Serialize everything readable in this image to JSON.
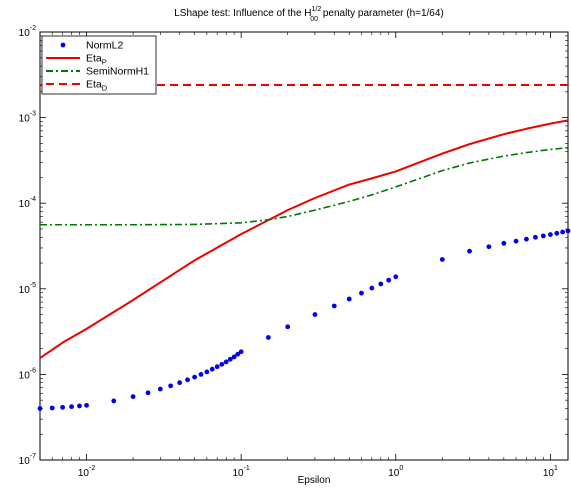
{
  "chart_data": {
    "type": "line",
    "title": {
      "prefix": "LShape test: Influence of the H",
      "sup": "1/2",
      "sub": "00",
      "suffix": " penalty parameter (h=1/64)"
    },
    "xlabel": "Epsilon",
    "ylabel": "",
    "xscale": "log",
    "yscale": "log",
    "xlim": [
      0.005,
      13
    ],
    "ylim": [
      1e-07,
      0.01
    ],
    "grid": false,
    "legend_position": "top-left",
    "x_ticks": [
      {
        "value": 0.01,
        "base": "10",
        "exp": "-2"
      },
      {
        "value": 0.1,
        "base": "10",
        "exp": "-1"
      },
      {
        "value": 1,
        "base": "10",
        "exp": "0"
      },
      {
        "value": 10,
        "base": "10",
        "exp": "1"
      }
    ],
    "y_ticks": [
      {
        "value": 1e-07,
        "base": "10",
        "exp": "-7"
      },
      {
        "value": 1e-06,
        "base": "10",
        "exp": "-6"
      },
      {
        "value": 1e-05,
        "base": "10",
        "exp": "-5"
      },
      {
        "value": 0.0001,
        "base": "10",
        "exp": "-4"
      },
      {
        "value": 0.001,
        "base": "10",
        "exp": "-3"
      },
      {
        "value": 0.01,
        "base": "10",
        "exp": "-2"
      }
    ],
    "series": [
      {
        "name": "NormL2",
        "label_main": "NormL2",
        "label_sub": "",
        "style": "dots",
        "color": "#0000ee",
        "x": [
          0.005,
          0.006,
          0.007,
          0.008,
          0.009,
          0.01,
          0.015,
          0.02,
          0.025,
          0.03,
          0.035,
          0.04,
          0.045,
          0.05,
          0.055,
          0.06,
          0.065,
          0.07,
          0.075,
          0.08,
          0.085,
          0.09,
          0.095,
          0.1,
          0.15,
          0.2,
          0.3,
          0.4,
          0.5,
          0.6,
          0.7,
          0.8,
          0.9,
          1.0,
          2,
          3,
          4,
          5,
          6,
          7,
          8,
          9,
          10,
          11,
          12,
          13
        ],
        "y": [
          4e-07,
          4.05e-07,
          4.12e-07,
          4.2e-07,
          4.28e-07,
          4.35e-07,
          4.9e-07,
          5.5e-07,
          6.1e-07,
          6.75e-07,
          7.35e-07,
          8e-07,
          8.65e-07,
          9.3e-07,
          1e-06,
          1.07e-06,
          1.15e-06,
          1.23e-06,
          1.31e-06,
          1.4e-06,
          1.5e-06,
          1.6e-06,
          1.72e-06,
          1.84e-06,
          2.7e-06,
          3.6e-06,
          5e-06,
          6.3e-06,
          7.6e-06,
          8.9e-06,
          1.02e-05,
          1.14e-05,
          1.26e-05,
          1.38e-05,
          2.2e-05,
          2.75e-05,
          3.1e-05,
          3.4e-05,
          3.6e-05,
          3.8e-05,
          4e-05,
          4.15e-05,
          4.3e-05,
          4.45e-05,
          4.6e-05,
          4.75e-05
        ]
      },
      {
        "name": "EtaP",
        "label_main": "Eta",
        "label_sub": "P",
        "style": "solid",
        "color": "#ee0000",
        "x": [
          0.005,
          0.007,
          0.01,
          0.02,
          0.05,
          0.1,
          0.2,
          0.3,
          0.5,
          0.7,
          1,
          2,
          3,
          5,
          7,
          10,
          13
        ],
        "y": [
          1.55e-06,
          2.35e-06,
          3.4e-06,
          7.4e-06,
          2.15e-05,
          4.35e-05,
          8.3e-05,
          0.000115,
          0.000165,
          0.000195,
          0.000235,
          0.00038,
          0.00049,
          0.00064,
          0.00074,
          0.00085,
          0.00093
        ]
      },
      {
        "name": "SemiNormH1",
        "label_main": "SemiNormH1",
        "label_sub": "",
        "style": "dashdot",
        "color": "#007700",
        "x": [
          0.005,
          0.01,
          0.02,
          0.05,
          0.1,
          0.15,
          0.2,
          0.3,
          0.5,
          0.7,
          1,
          2,
          3,
          5,
          7,
          10,
          13
        ],
        "y": [
          5.6e-05,
          5.6e-05,
          5.6e-05,
          5.65e-05,
          5.9e-05,
          6.4e-05,
          7e-05,
          8.3e-05,
          0.000105,
          0.000125,
          0.000155,
          0.00024,
          0.000295,
          0.000355,
          0.00039,
          0.000425,
          0.000445
        ]
      },
      {
        "name": "EtaD",
        "label_main": "Eta",
        "label_sub": "D",
        "style": "dashed",
        "color": "#ee0000",
        "x": [
          0.005,
          13
        ],
        "y": [
          0.0024,
          0.0024
        ]
      }
    ]
  }
}
